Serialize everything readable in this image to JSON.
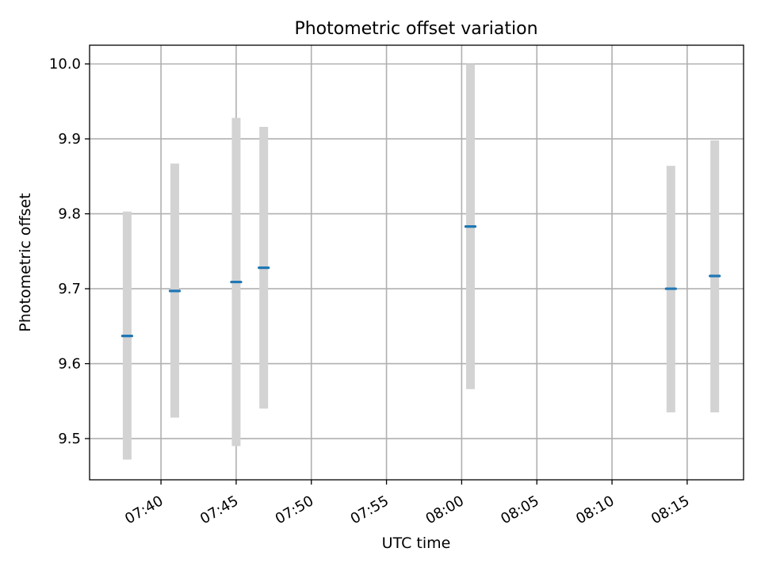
{
  "chart_data": {
    "type": "scatter",
    "title": "Photometric offset variation",
    "xlabel": "UTC time",
    "ylabel": "Photometric offset",
    "x_ticks": [
      "07:40",
      "07:45",
      "07:50",
      "07:55",
      "08:00",
      "08:05",
      "08:10",
      "08:15"
    ],
    "y_ticks": [
      "9.5",
      "9.6",
      "9.7",
      "9.8",
      "9.9",
      "10.0"
    ],
    "xlim": [
      "07:35:15",
      "08:18:45"
    ],
    "ylim": [
      9.445,
      10.025
    ],
    "grid": true,
    "points": [
      {
        "x": "07:37:45",
        "y": 9.637,
        "yerr_low": 9.472,
        "yerr_high": 9.803
      },
      {
        "x": "07:40:55",
        "y": 9.697,
        "yerr_low": 9.528,
        "yerr_high": 9.867
      },
      {
        "x": "07:45:00",
        "y": 9.709,
        "yerr_low": 9.49,
        "yerr_high": 9.928
      },
      {
        "x": "07:46:50",
        "y": 9.728,
        "yerr_low": 9.54,
        "yerr_high": 9.916
      },
      {
        "x": "08:00:35",
        "y": 9.783,
        "yerr_low": 9.566,
        "yerr_high": 10.0
      },
      {
        "x": "08:13:55",
        "y": 9.7,
        "yerr_low": 9.535,
        "yerr_high": 9.864
      },
      {
        "x": "08:16:50",
        "y": 9.717,
        "yerr_low": 9.535,
        "yerr_high": 9.898
      }
    ],
    "colors": {
      "marker": "#1f77b4",
      "errorbar": "#d3d3d3",
      "grid": "#b0b0b0"
    }
  }
}
